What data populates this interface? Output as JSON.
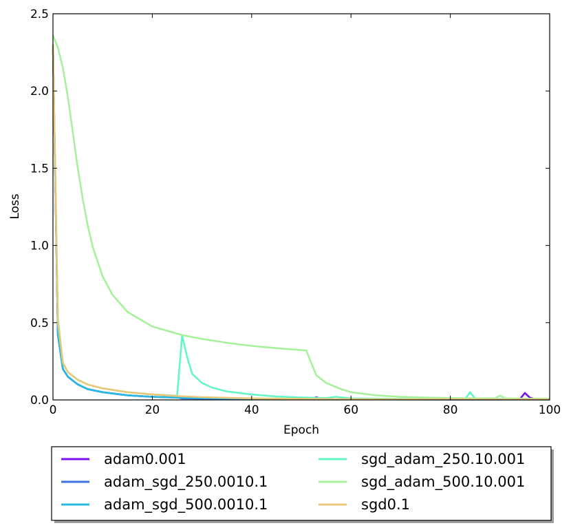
{
  "chart_data": {
    "type": "line",
    "title": "",
    "xlabel": "Epoch",
    "ylabel": "Loss",
    "xlim": [
      0,
      100
    ],
    "ylim": [
      0,
      2.5
    ],
    "x_ticks": [
      "0",
      "20",
      "40",
      "60",
      "80",
      "100"
    ],
    "y_ticks": [
      "0.0",
      "0.5",
      "1.0",
      "1.5",
      "2.0",
      "2.5"
    ],
    "grid": false,
    "legend_position": "below",
    "series": [
      {
        "name": "adam0.001",
        "color": "#7a0ff0",
        "x": [
          0,
          1,
          2,
          3,
          5,
          7,
          10,
          15,
          20,
          25,
          30,
          35,
          40,
          45,
          50,
          52,
          53,
          54,
          55,
          60,
          65,
          70,
          75,
          80,
          85,
          90,
          94,
          95,
          96,
          97,
          100
        ],
        "y": [
          2.3,
          0.42,
          0.2,
          0.15,
          0.1,
          0.07,
          0.05,
          0.03,
          0.02,
          0.015,
          0.012,
          0.01,
          0.008,
          0.007,
          0.006,
          0.006,
          0.018,
          0.008,
          0.006,
          0.005,
          0.004,
          0.004,
          0.003,
          0.003,
          0.003,
          0.003,
          0.005,
          0.045,
          0.015,
          0.005,
          0.003
        ]
      },
      {
        "name": "adam_sgd_250.0010.1",
        "color": "#3f6fe3",
        "x": [
          0,
          1,
          2,
          3,
          5,
          7,
          10,
          15,
          20,
          25,
          26,
          30,
          40,
          50,
          60,
          70,
          80,
          90,
          100
        ],
        "y": [
          2.3,
          0.42,
          0.2,
          0.15,
          0.1,
          0.07,
          0.05,
          0.03,
          0.02,
          0.015,
          0.01,
          0.008,
          0.006,
          0.005,
          0.004,
          0.004,
          0.003,
          0.003,
          0.003
        ]
      },
      {
        "name": "adam_sgd_500.0010.1",
        "color": "#27bbe0",
        "x": [
          0,
          1,
          2,
          3,
          5,
          7,
          10,
          15,
          20,
          25,
          30,
          35,
          40,
          45,
          50,
          51,
          55,
          60,
          70,
          80,
          90,
          100
        ],
        "y": [
          2.3,
          0.42,
          0.2,
          0.15,
          0.1,
          0.07,
          0.05,
          0.03,
          0.02,
          0.015,
          0.012,
          0.01,
          0.008,
          0.007,
          0.006,
          0.005,
          0.004,
          0.004,
          0.003,
          0.003,
          0.003,
          0.003
        ]
      },
      {
        "name": "sgd_adam_250.10.001",
        "color": "#66f5c8",
        "x": [
          0,
          1,
          2,
          3,
          5,
          7,
          10,
          15,
          20,
          25,
          26,
          27,
          28,
          30,
          32,
          35,
          40,
          45,
          50,
          55,
          57,
          60,
          65,
          70,
          75,
          80,
          83,
          84,
          85,
          90,
          95,
          100
        ],
        "y": [
          2.3,
          0.52,
          0.24,
          0.18,
          0.13,
          0.1,
          0.075,
          0.05,
          0.035,
          0.027,
          0.42,
          0.28,
          0.17,
          0.11,
          0.08,
          0.055,
          0.035,
          0.022,
          0.016,
          0.012,
          0.02,
          0.01,
          0.008,
          0.007,
          0.006,
          0.006,
          0.008,
          0.05,
          0.008,
          0.006,
          0.005,
          0.005
        ]
      },
      {
        "name": "sgd_adam_500.10.001",
        "color": "#a7f09c",
        "x": [
          0,
          1,
          2,
          3,
          4,
          5,
          6,
          7,
          8,
          10,
          12,
          15,
          20,
          26,
          30,
          35,
          40,
          45,
          51,
          52,
          53,
          55,
          58,
          60,
          65,
          70,
          75,
          80,
          85,
          89,
          90,
          91,
          95,
          100
        ],
        "y": [
          2.36,
          2.28,
          2.15,
          1.96,
          1.73,
          1.5,
          1.3,
          1.13,
          0.99,
          0.8,
          0.68,
          0.57,
          0.475,
          0.42,
          0.395,
          0.37,
          0.35,
          0.335,
          0.32,
          0.24,
          0.16,
          0.11,
          0.07,
          0.05,
          0.03,
          0.02,
          0.015,
          0.012,
          0.01,
          0.01,
          0.028,
          0.01,
          0.008,
          0.008
        ]
      },
      {
        "name": "sgd0.1",
        "color": "#eac778",
        "x": [
          0,
          1,
          2,
          3,
          5,
          7,
          10,
          15,
          20,
          25,
          30,
          35,
          40,
          50,
          60,
          70,
          80,
          90,
          100
        ],
        "y": [
          2.3,
          0.5,
          0.24,
          0.18,
          0.13,
          0.1,
          0.075,
          0.05,
          0.035,
          0.025,
          0.018,
          0.014,
          0.01,
          0.007,
          0.005,
          0.004,
          0.004,
          0.003,
          0.003
        ]
      }
    ]
  }
}
